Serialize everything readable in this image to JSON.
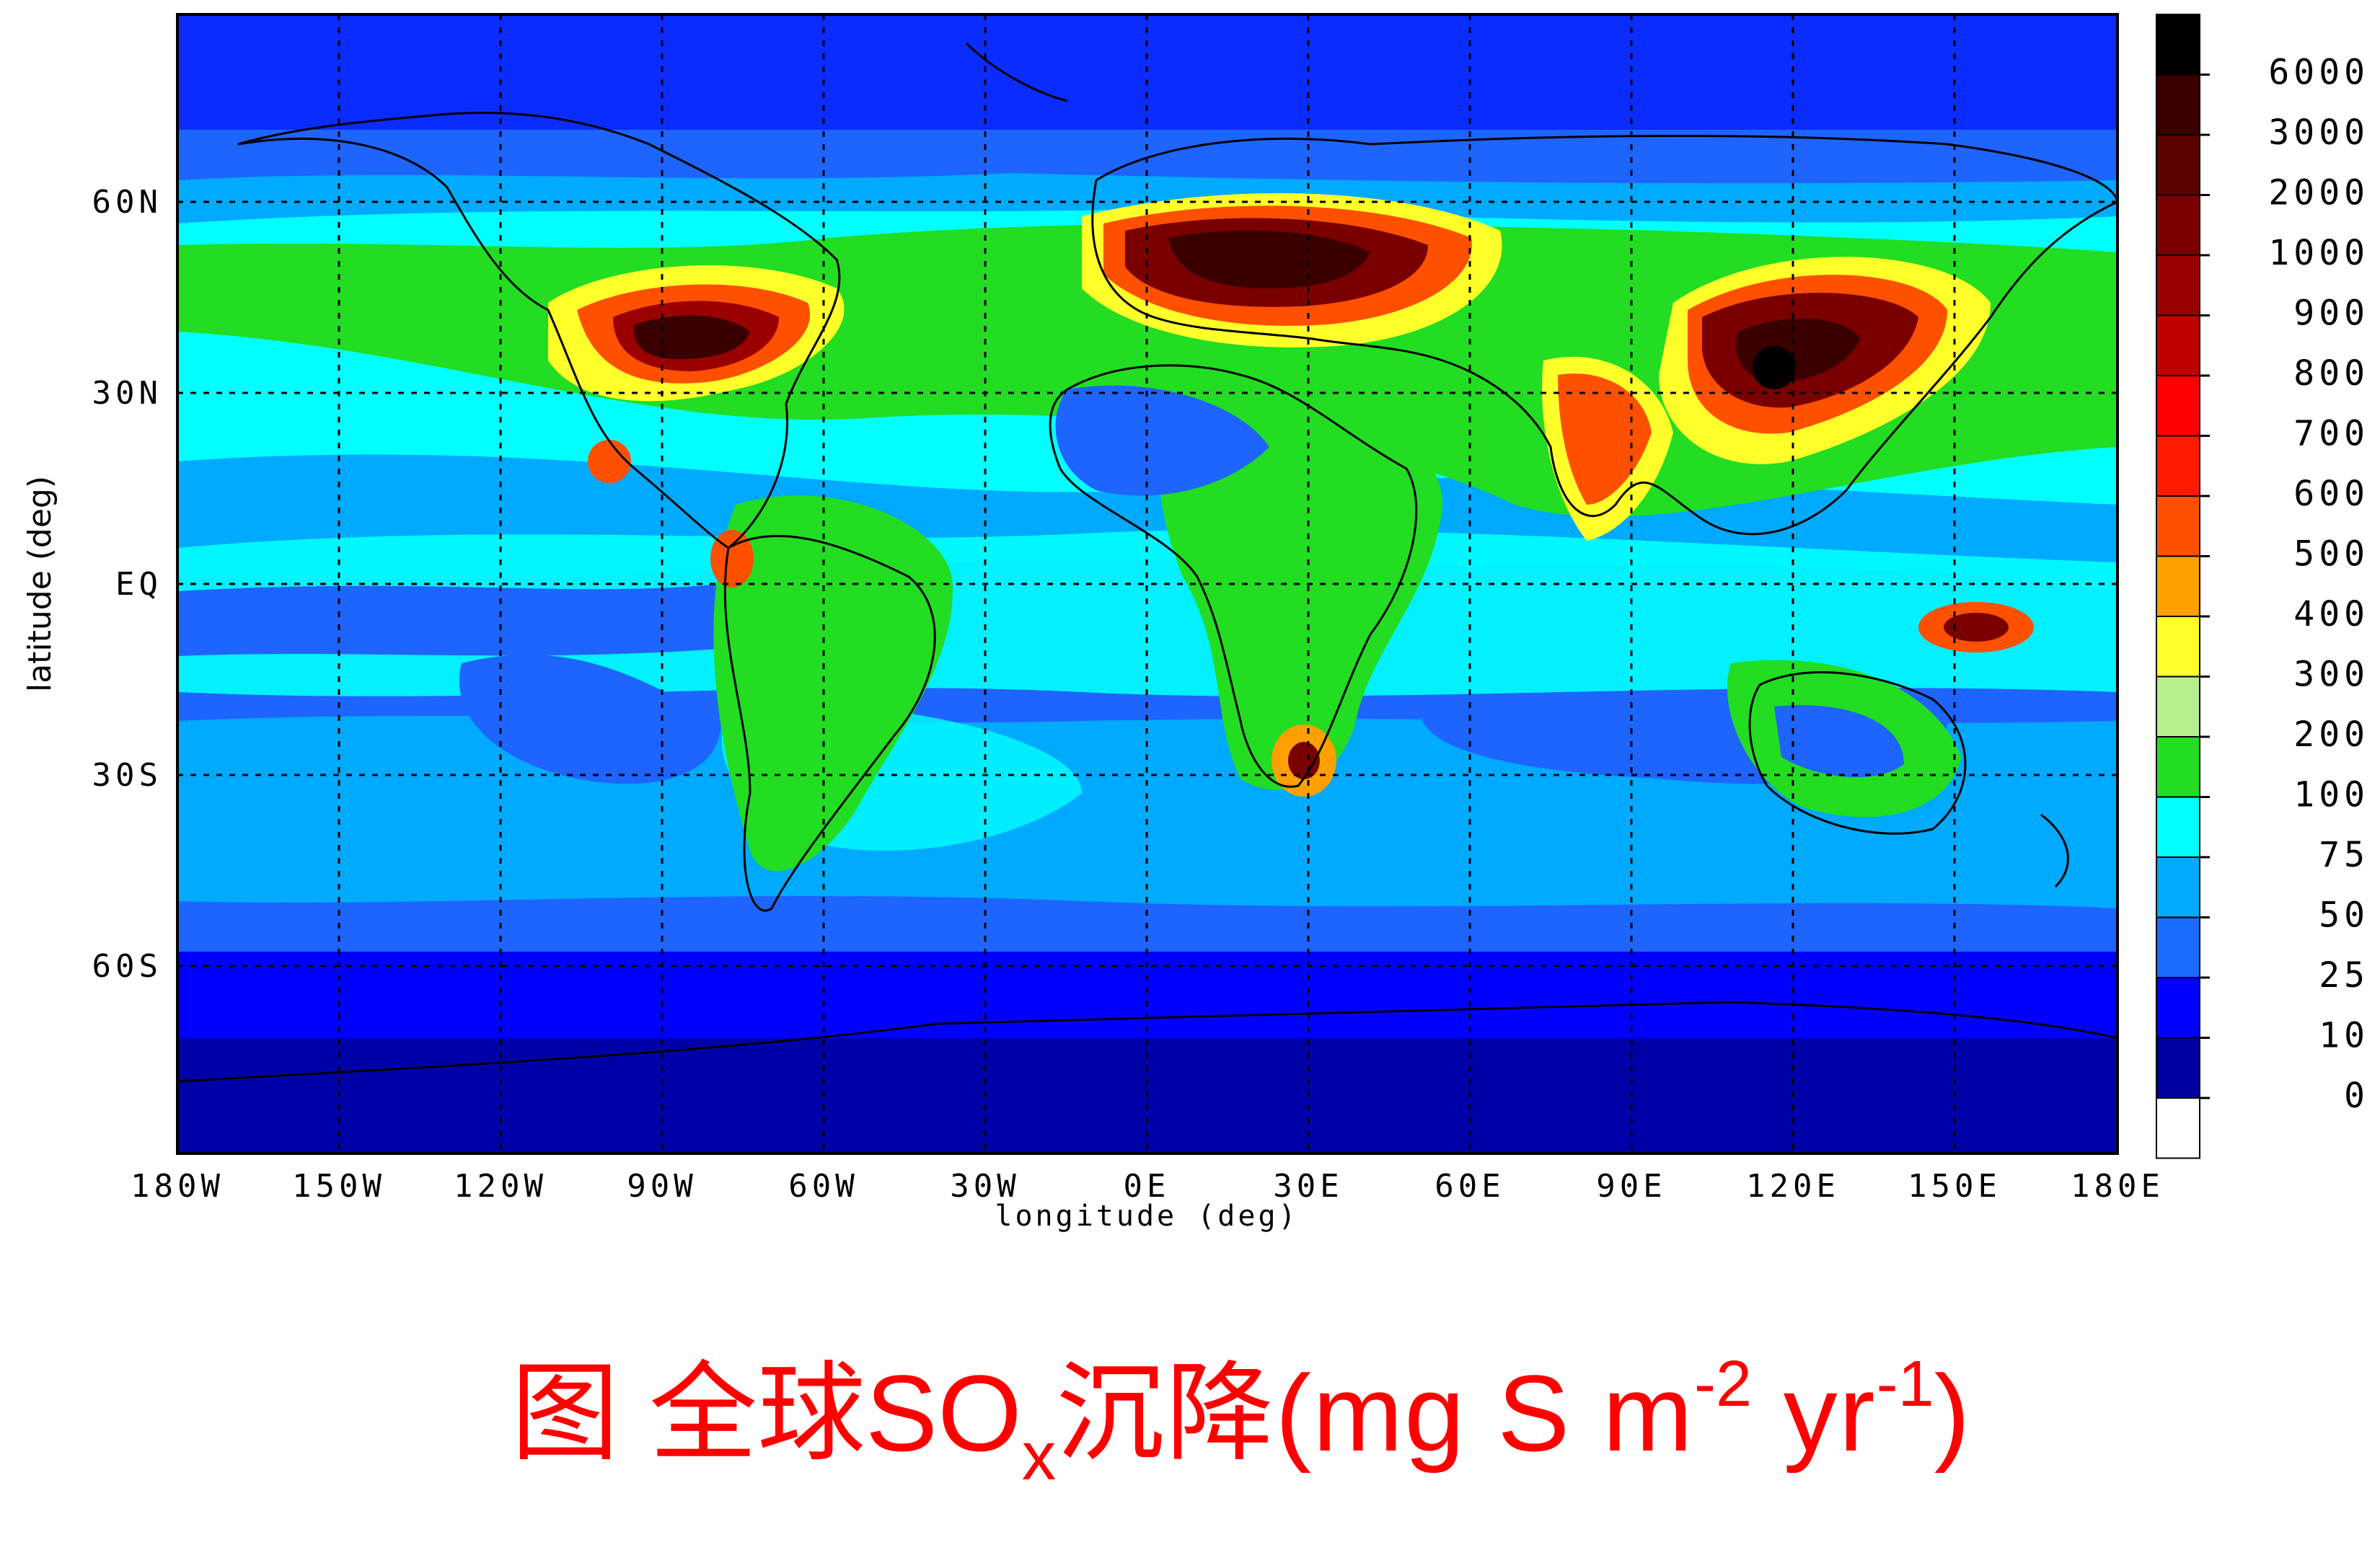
{
  "map": {
    "xlabel": "longitude (deg)",
    "ylabel": "latitude (deg)",
    "lon_ticks": [
      "180W",
      "150W",
      "120W",
      "90W",
      "60W",
      "30W",
      "0E",
      "30E",
      "60E",
      "90E",
      "120E",
      "150E",
      "180E"
    ],
    "lat_ticks": [
      "60N",
      "30N",
      "EQ",
      "30S",
      "60S"
    ],
    "colorbar": {
      "labels": [
        "6000",
        "3000",
        "2000",
        "1000",
        "900",
        "800",
        "700",
        "600",
        "500",
        "400",
        "300",
        "200",
        "100",
        "75",
        "50",
        "25",
        "10",
        "0"
      ],
      "colors": [
        "#000000",
        "#3a0000",
        "#5c0000",
        "#7a0000",
        "#9a0000",
        "#c00000",
        "#ff0000",
        "#ff1a00",
        "#ff5000",
        "#ffa000",
        "#ffff2a",
        "#b6f08c",
        "#22dd22",
        "#00ffff",
        "#00aaff",
        "#1a6cff",
        "#0000ff",
        "#0000a0",
        "#ffffff"
      ]
    },
    "basemap": {
      "ocean_low": "#0000a8",
      "ocean_mid": "#1e64ff",
      "ocean_high": "#00c8ff"
    }
  },
  "caption": {
    "lead": "图 全球SO",
    "sub": "x",
    "mid": "沉降(mg S m",
    "sup1": "-2",
    "yr": " yr",
    "sup2": "-1",
    "end": ")"
  }
}
